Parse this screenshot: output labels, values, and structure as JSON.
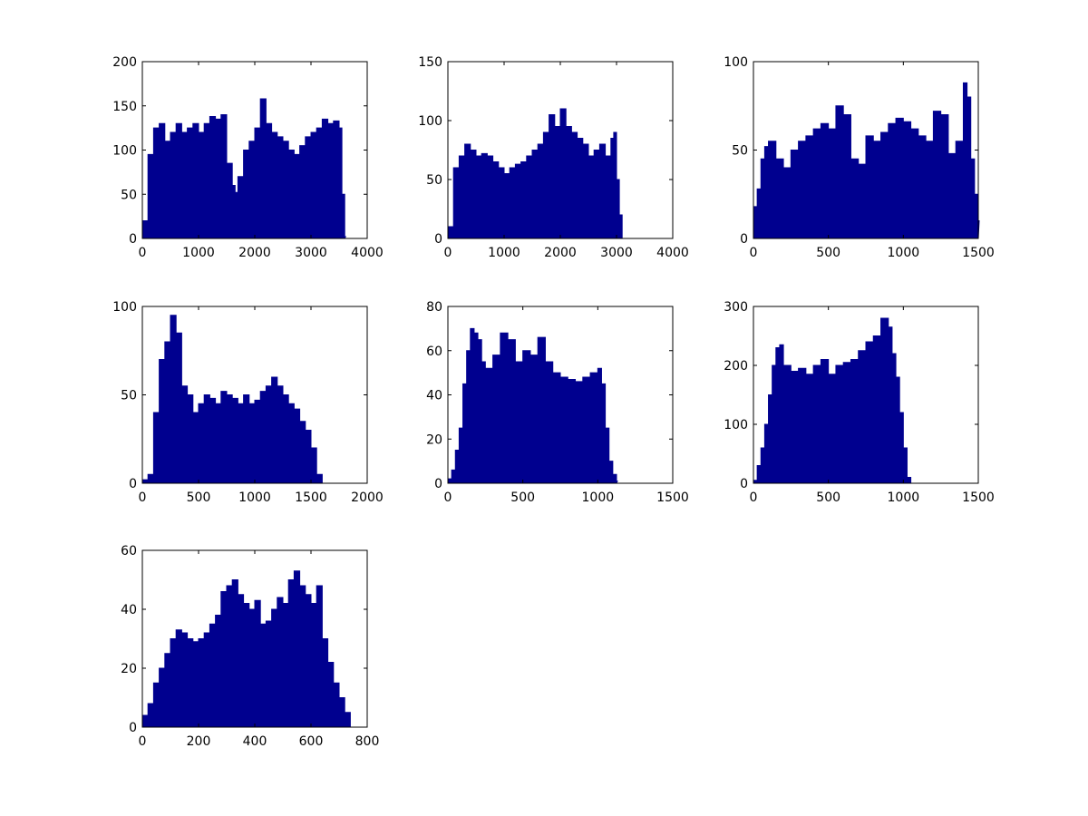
{
  "figure": {
    "background": "#ffffff",
    "bar_color": "#00008f",
    "axis_color": "#000000"
  },
  "chart_data": [
    {
      "type": "bar",
      "xlim": [
        0,
        4000
      ],
      "ylim": [
        0,
        200
      ],
      "xticks": [
        0,
        1000,
        2000,
        3000,
        4000
      ],
      "yticks": [
        0,
        50,
        100,
        150,
        200
      ],
      "grid": false,
      "series": [
        {
          "x": [
            0,
            100,
            200,
            300,
            400,
            500,
            600,
            700,
            800,
            900,
            1000,
            1100,
            1200,
            1300,
            1400,
            1500,
            1600,
            1650,
            1700,
            1800,
            1900,
            2000,
            2100,
            2200,
            2300,
            2400,
            2500,
            2600,
            2700,
            2800,
            2900,
            3000,
            3100,
            3200,
            3300,
            3400,
            3500,
            3550,
            3600
          ],
          "y": [
            20,
            95,
            125,
            130,
            110,
            120,
            130,
            120,
            125,
            130,
            120,
            130,
            138,
            135,
            140,
            85,
            60,
            52,
            70,
            100,
            110,
            125,
            158,
            130,
            120,
            115,
            110,
            100,
            95,
            105,
            115,
            120,
            125,
            135,
            130,
            133,
            125,
            50,
            2
          ]
        }
      ]
    },
    {
      "type": "bar",
      "xlim": [
        0,
        4000
      ],
      "ylim": [
        0,
        150
      ],
      "xticks": [
        0,
        1000,
        2000,
        3000,
        4000
      ],
      "yticks": [
        0,
        50,
        100,
        150
      ],
      "grid": false,
      "series": [
        {
          "x": [
            0,
            100,
            200,
            300,
            400,
            500,
            600,
            700,
            800,
            900,
            1000,
            1100,
            1200,
            1300,
            1400,
            1500,
            1600,
            1700,
            1800,
            1900,
            2000,
            2100,
            2200,
            2300,
            2400,
            2500,
            2600,
            2700,
            2800,
            2900,
            2950,
            3000,
            3050,
            3100
          ],
          "y": [
            10,
            60,
            70,
            80,
            75,
            70,
            72,
            70,
            65,
            60,
            55,
            60,
            63,
            65,
            70,
            75,
            80,
            90,
            105,
            95,
            110,
            95,
            90,
            85,
            80,
            70,
            75,
            80,
            70,
            85,
            90,
            50,
            20,
            0
          ]
        }
      ]
    },
    {
      "type": "bar",
      "xlim": [
        0,
        1500
      ],
      "ylim": [
        0,
        100
      ],
      "xticks": [
        0,
        500,
        1000,
        1500
      ],
      "yticks": [
        0,
        50,
        100
      ],
      "grid": false,
      "series": [
        {
          "x": [
            0,
            25,
            50,
            75,
            100,
            150,
            200,
            250,
            300,
            350,
            400,
            450,
            500,
            550,
            600,
            650,
            700,
            750,
            800,
            850,
            900,
            950,
            1000,
            1050,
            1100,
            1150,
            1200,
            1250,
            1300,
            1350,
            1400,
            1425,
            1450,
            1475,
            1500
          ],
          "y": [
            18,
            28,
            45,
            52,
            55,
            45,
            40,
            50,
            55,
            58,
            62,
            65,
            62,
            75,
            70,
            45,
            42,
            58,
            55,
            60,
            65,
            68,
            66,
            62,
            58,
            55,
            72,
            70,
            48,
            55,
            88,
            80,
            45,
            25,
            10
          ]
        }
      ]
    },
    {
      "type": "bar",
      "xlim": [
        0,
        2000
      ],
      "ylim": [
        0,
        100
      ],
      "xticks": [
        0,
        500,
        1000,
        1500,
        2000
      ],
      "yticks": [
        0,
        50,
        100
      ],
      "grid": false,
      "series": [
        {
          "x": [
            0,
            50,
            100,
            150,
            200,
            250,
            300,
            350,
            400,
            450,
            500,
            550,
            600,
            650,
            700,
            750,
            800,
            850,
            900,
            950,
            1000,
            1050,
            1100,
            1150,
            1200,
            1250,
            1300,
            1350,
            1400,
            1450,
            1500,
            1550,
            1600
          ],
          "y": [
            2,
            5,
            40,
            70,
            80,
            95,
            85,
            55,
            50,
            40,
            45,
            50,
            48,
            45,
            52,
            50,
            48,
            45,
            50,
            45,
            47,
            52,
            55,
            60,
            55,
            50,
            45,
            42,
            35,
            30,
            20,
            5,
            0
          ]
        }
      ]
    },
    {
      "type": "bar",
      "xlim": [
        0,
        1500
      ],
      "ylim": [
        0,
        80
      ],
      "xticks": [
        0,
        500,
        1000,
        1500
      ],
      "yticks": [
        0,
        20,
        40,
        60,
        80
      ],
      "grid": false,
      "series": [
        {
          "x": [
            0,
            25,
            50,
            75,
            100,
            125,
            150,
            175,
            200,
            225,
            250,
            300,
            350,
            400,
            450,
            500,
            550,
            600,
            650,
            700,
            750,
            800,
            850,
            900,
            950,
            1000,
            1025,
            1050,
            1075,
            1100,
            1125
          ],
          "y": [
            2,
            6,
            15,
            25,
            45,
            60,
            70,
            68,
            65,
            55,
            52,
            58,
            68,
            65,
            55,
            60,
            58,
            66,
            55,
            50,
            48,
            47,
            46,
            48,
            50,
            52,
            45,
            25,
            10,
            4,
            1
          ]
        }
      ]
    },
    {
      "type": "bar",
      "xlim": [
        0,
        1500
      ],
      "ylim": [
        0,
        300
      ],
      "xticks": [
        0,
        500,
        1000,
        1500
      ],
      "yticks": [
        0,
        100,
        200,
        300
      ],
      "grid": false,
      "series": [
        {
          "x": [
            0,
            25,
            50,
            75,
            100,
            125,
            150,
            175,
            200,
            250,
            300,
            350,
            400,
            450,
            500,
            550,
            600,
            650,
            700,
            750,
            800,
            850,
            900,
            925,
            950,
            975,
            1000,
            1025,
            1050
          ],
          "y": [
            5,
            30,
            60,
            100,
            150,
            200,
            230,
            235,
            200,
            190,
            195,
            185,
            200,
            210,
            185,
            200,
            205,
            210,
            225,
            240,
            250,
            280,
            265,
            220,
            180,
            120,
            60,
            10,
            0
          ]
        }
      ]
    },
    {
      "type": "bar",
      "xlim": [
        0,
        800
      ],
      "ylim": [
        0,
        60
      ],
      "xticks": [
        0,
        200,
        400,
        600,
        800
      ],
      "yticks": [
        0,
        20,
        40,
        60
      ],
      "grid": false,
      "series": [
        {
          "x": [
            0,
            20,
            40,
            60,
            80,
            100,
            120,
            140,
            160,
            180,
            200,
            220,
            240,
            260,
            280,
            300,
            320,
            340,
            360,
            380,
            400,
            420,
            440,
            460,
            480,
            500,
            520,
            540,
            560,
            580,
            600,
            620,
            640,
            660,
            680,
            700,
            720,
            740
          ],
          "y": [
            4,
            8,
            15,
            20,
            25,
            30,
            33,
            32,
            30,
            29,
            30,
            32,
            35,
            38,
            46,
            48,
            50,
            45,
            42,
            40,
            43,
            35,
            36,
            40,
            44,
            42,
            50,
            53,
            48,
            45,
            42,
            48,
            30,
            22,
            15,
            10,
            5,
            0
          ]
        }
      ]
    }
  ]
}
